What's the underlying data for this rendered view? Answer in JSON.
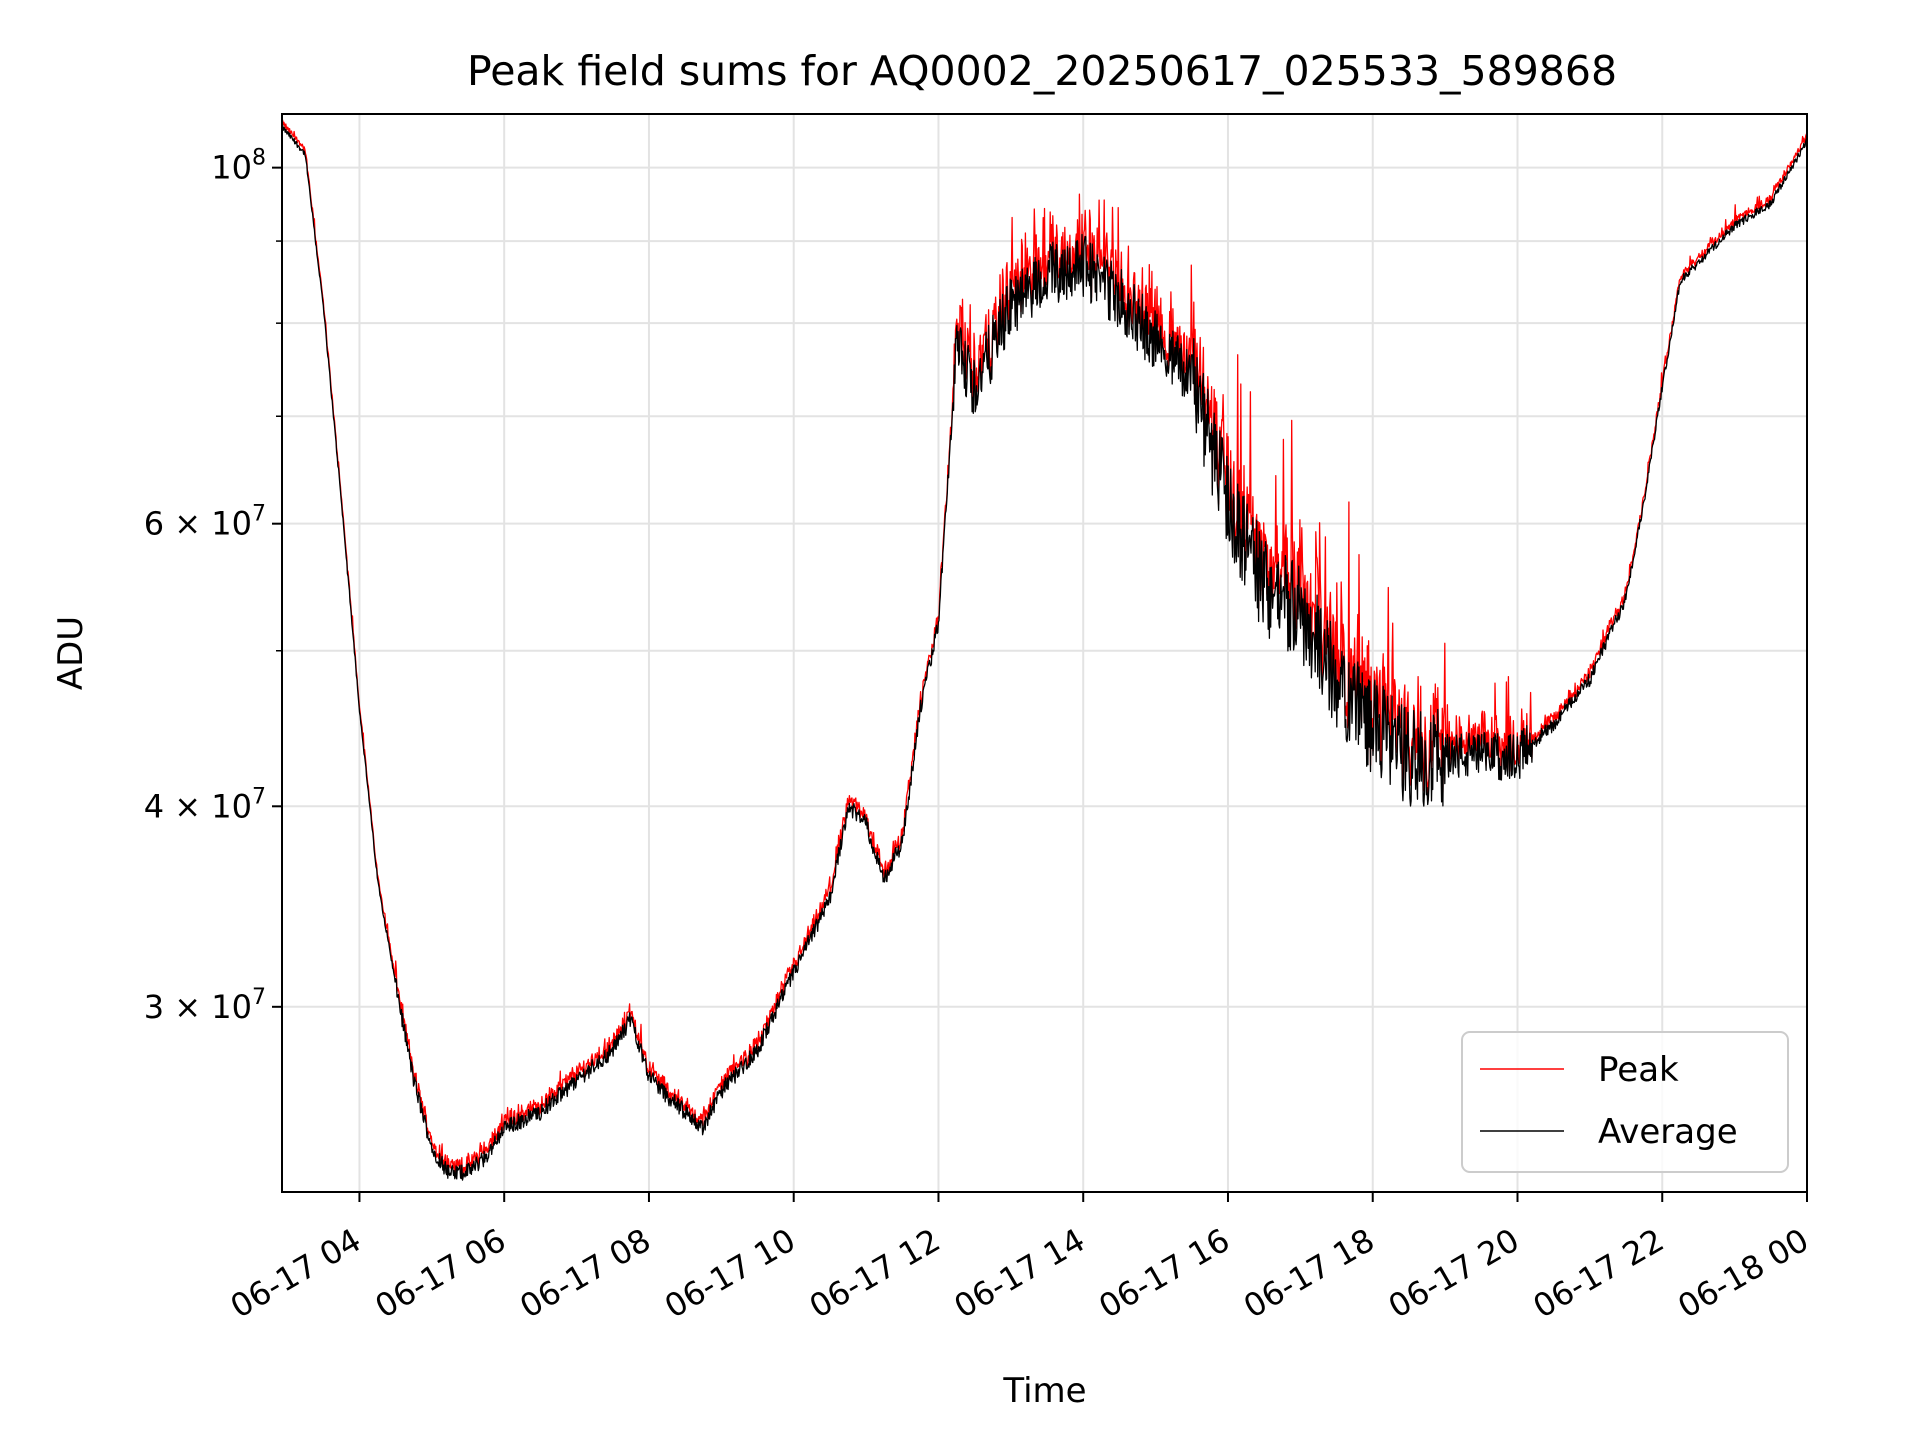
{
  "chart_data": {
    "type": "line",
    "title": "Peak field sums for AQ0002_20250617_025533_589868",
    "xlabel": "Time",
    "ylabel": "ADU",
    "yscale": "log",
    "xlim": [
      "06-17 02:56",
      "06-18 00:00"
    ],
    "ylim": [
      23000000,
      108000000
    ],
    "x_tick_labels": [
      "06-17 04",
      "06-17 06",
      "06-17 08",
      "06-17 10",
      "06-17 12",
      "06-17 14",
      "06-17 16",
      "06-17 18",
      "06-17 20",
      "06-17 22",
      "06-18 00"
    ],
    "x_tick_hours": [
      4,
      6,
      8,
      10,
      12,
      14,
      16,
      18,
      20,
      22,
      24
    ],
    "y_major_ticks": [
      {
        "value": 30000000,
        "mantissa": "3",
        "exp": "7"
      },
      {
        "value": 40000000,
        "mantissa": "4",
        "exp": "7"
      },
      {
        "value": 60000000,
        "mantissa": "6",
        "exp": "7"
      },
      {
        "value": 100000000,
        "mantissa": "",
        "exp": "8"
      }
    ],
    "y_minor_ticks": [
      50000000,
      70000000,
      80000000,
      90000000
    ],
    "grid": true,
    "legend_position": "bottom-right",
    "series": [
      {
        "name": "Average",
        "color": "#000000",
        "x_hours": [
          2.93,
          3.25,
          3.5,
          3.75,
          4.0,
          4.25,
          4.5,
          4.75,
          5.0,
          5.25,
          5.5,
          5.75,
          6.0,
          6.5,
          7.0,
          7.5,
          7.75,
          8.0,
          8.25,
          8.75,
          9.0,
          9.5,
          10.0,
          10.5,
          10.75,
          11.0,
          11.25,
          11.5,
          11.75,
          12.0,
          12.25,
          12.5,
          13.0,
          13.5,
          14.0,
          14.5,
          15.0,
          15.5,
          16.0,
          16.5,
          17.0,
          17.5,
          18.0,
          18.5,
          19.0,
          19.5,
          20.0,
          20.5,
          21.0,
          21.5,
          21.75,
          22.0,
          22.25,
          23.0,
          23.5,
          24.0
        ],
        "values": [
          106000000,
          102000000,
          82000000,
          62000000,
          46000000,
          36000000,
          31000000,
          27000000,
          24500000,
          23600000,
          23700000,
          24200000,
          25200000,
          25800000,
          27000000,
          28200000,
          29500000,
          27200000,
          26400000,
          25200000,
          26600000,
          28200000,
          31500000,
          35000000,
          40000000,
          39000000,
          36000000,
          38000000,
          46000000,
          52000000,
          77000000,
          73000000,
          82000000,
          86000000,
          87000000,
          83000000,
          78000000,
          74000000,
          62000000,
          55000000,
          53000000,
          48000000,
          45000000,
          43000000,
          43000000,
          43000000,
          43000000,
          45000000,
          48000000,
          54000000,
          62000000,
          73000000,
          85000000,
          92000000,
          95000000,
          104000000
        ]
      },
      {
        "name": "Peak",
        "color": "#ff0000"
      }
    ]
  }
}
